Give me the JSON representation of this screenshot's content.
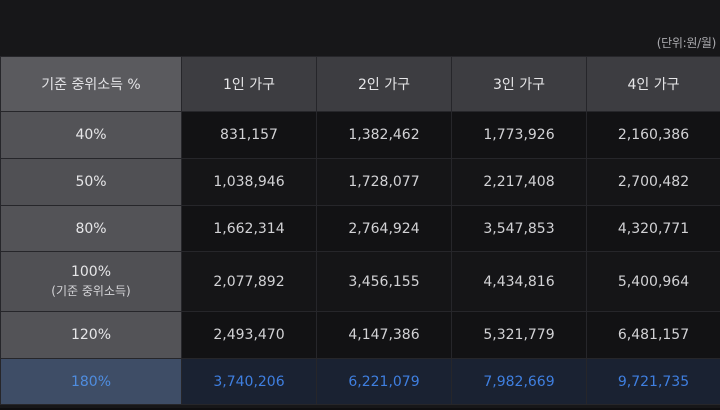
{
  "unit_note": "(단위:원/월)",
  "header": {
    "corner": "기준 중위소득 %",
    "columns": [
      "1인 가구",
      "2인 가구",
      "3인 가구",
      "4인 가구"
    ]
  },
  "rows": [
    {
      "label": "40%",
      "sub": "",
      "values": [
        "831,157",
        "1,382,462",
        "1,773,926",
        "2,160,386"
      ]
    },
    {
      "label": "50%",
      "sub": "",
      "values": [
        "1,038,946",
        "1,728,077",
        "2,217,408",
        "2,700,482"
      ]
    },
    {
      "label": "80%",
      "sub": "",
      "values": [
        "1,662,314",
        "2,764,924",
        "3,547,853",
        "4,320,771"
      ]
    },
    {
      "label": "100%",
      "sub": "(기준 중위소득)",
      "values": [
        "2,077,892",
        "3,456,155",
        "4,434,816",
        "5,400,964"
      ]
    },
    {
      "label": "120%",
      "sub": "",
      "values": [
        "2,493,470",
        "4,147,386",
        "5,321,779",
        "6,481,157"
      ]
    },
    {
      "label": "180%",
      "sub": "",
      "values": [
        "3,740,206",
        "6,221,079",
        "7,982,669",
        "9,721,735"
      ]
    }
  ],
  "colors": {
    "background": "#171719",
    "header_bg": "#3d3d41",
    "label_bg": "#535357",
    "highlight_text": "#3f7fe0",
    "highlight_bg": "#1a2232"
  }
}
